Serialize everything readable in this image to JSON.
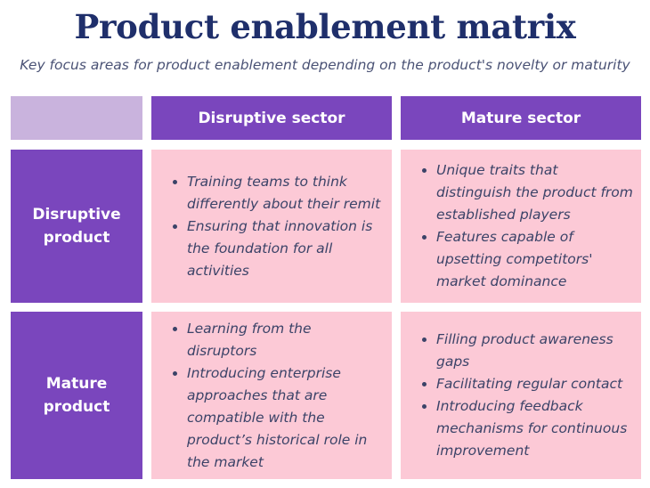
{
  "title": "Product enablement matrix",
  "subtitle": "Key focus areas for product enablement depending on the product's novelty or maturity",
  "columns": [
    "Disruptive sector",
    "Mature sector"
  ],
  "rows": [
    {
      "label": "Disruptive product",
      "cells": [
        [
          "Training teams to think differently about their remit",
          "Ensuring that innovation is the foundation for all activities"
        ],
        [
          "Unique traits that distinguish the product from established players",
          "Features capable of upsetting competitors' market dominance"
        ]
      ]
    },
    {
      "label": "Mature product",
      "cells": [
        [
          "Learning from the disruptors",
          "Introducing enterprise approaches that are compatible with the product’s historical role in the market"
        ],
        [
          "Filling product awareness gaps",
          "Facilitating regular contact",
          "Introducing feedback mechanisms for continuous improvement"
        ]
      ]
    }
  ],
  "colors": {
    "header_bg": "#7a46bd",
    "corner_bg": "#c9b3dd",
    "cell_bg": "#fcc9d6",
    "title_color": "#1f2f6b"
  }
}
